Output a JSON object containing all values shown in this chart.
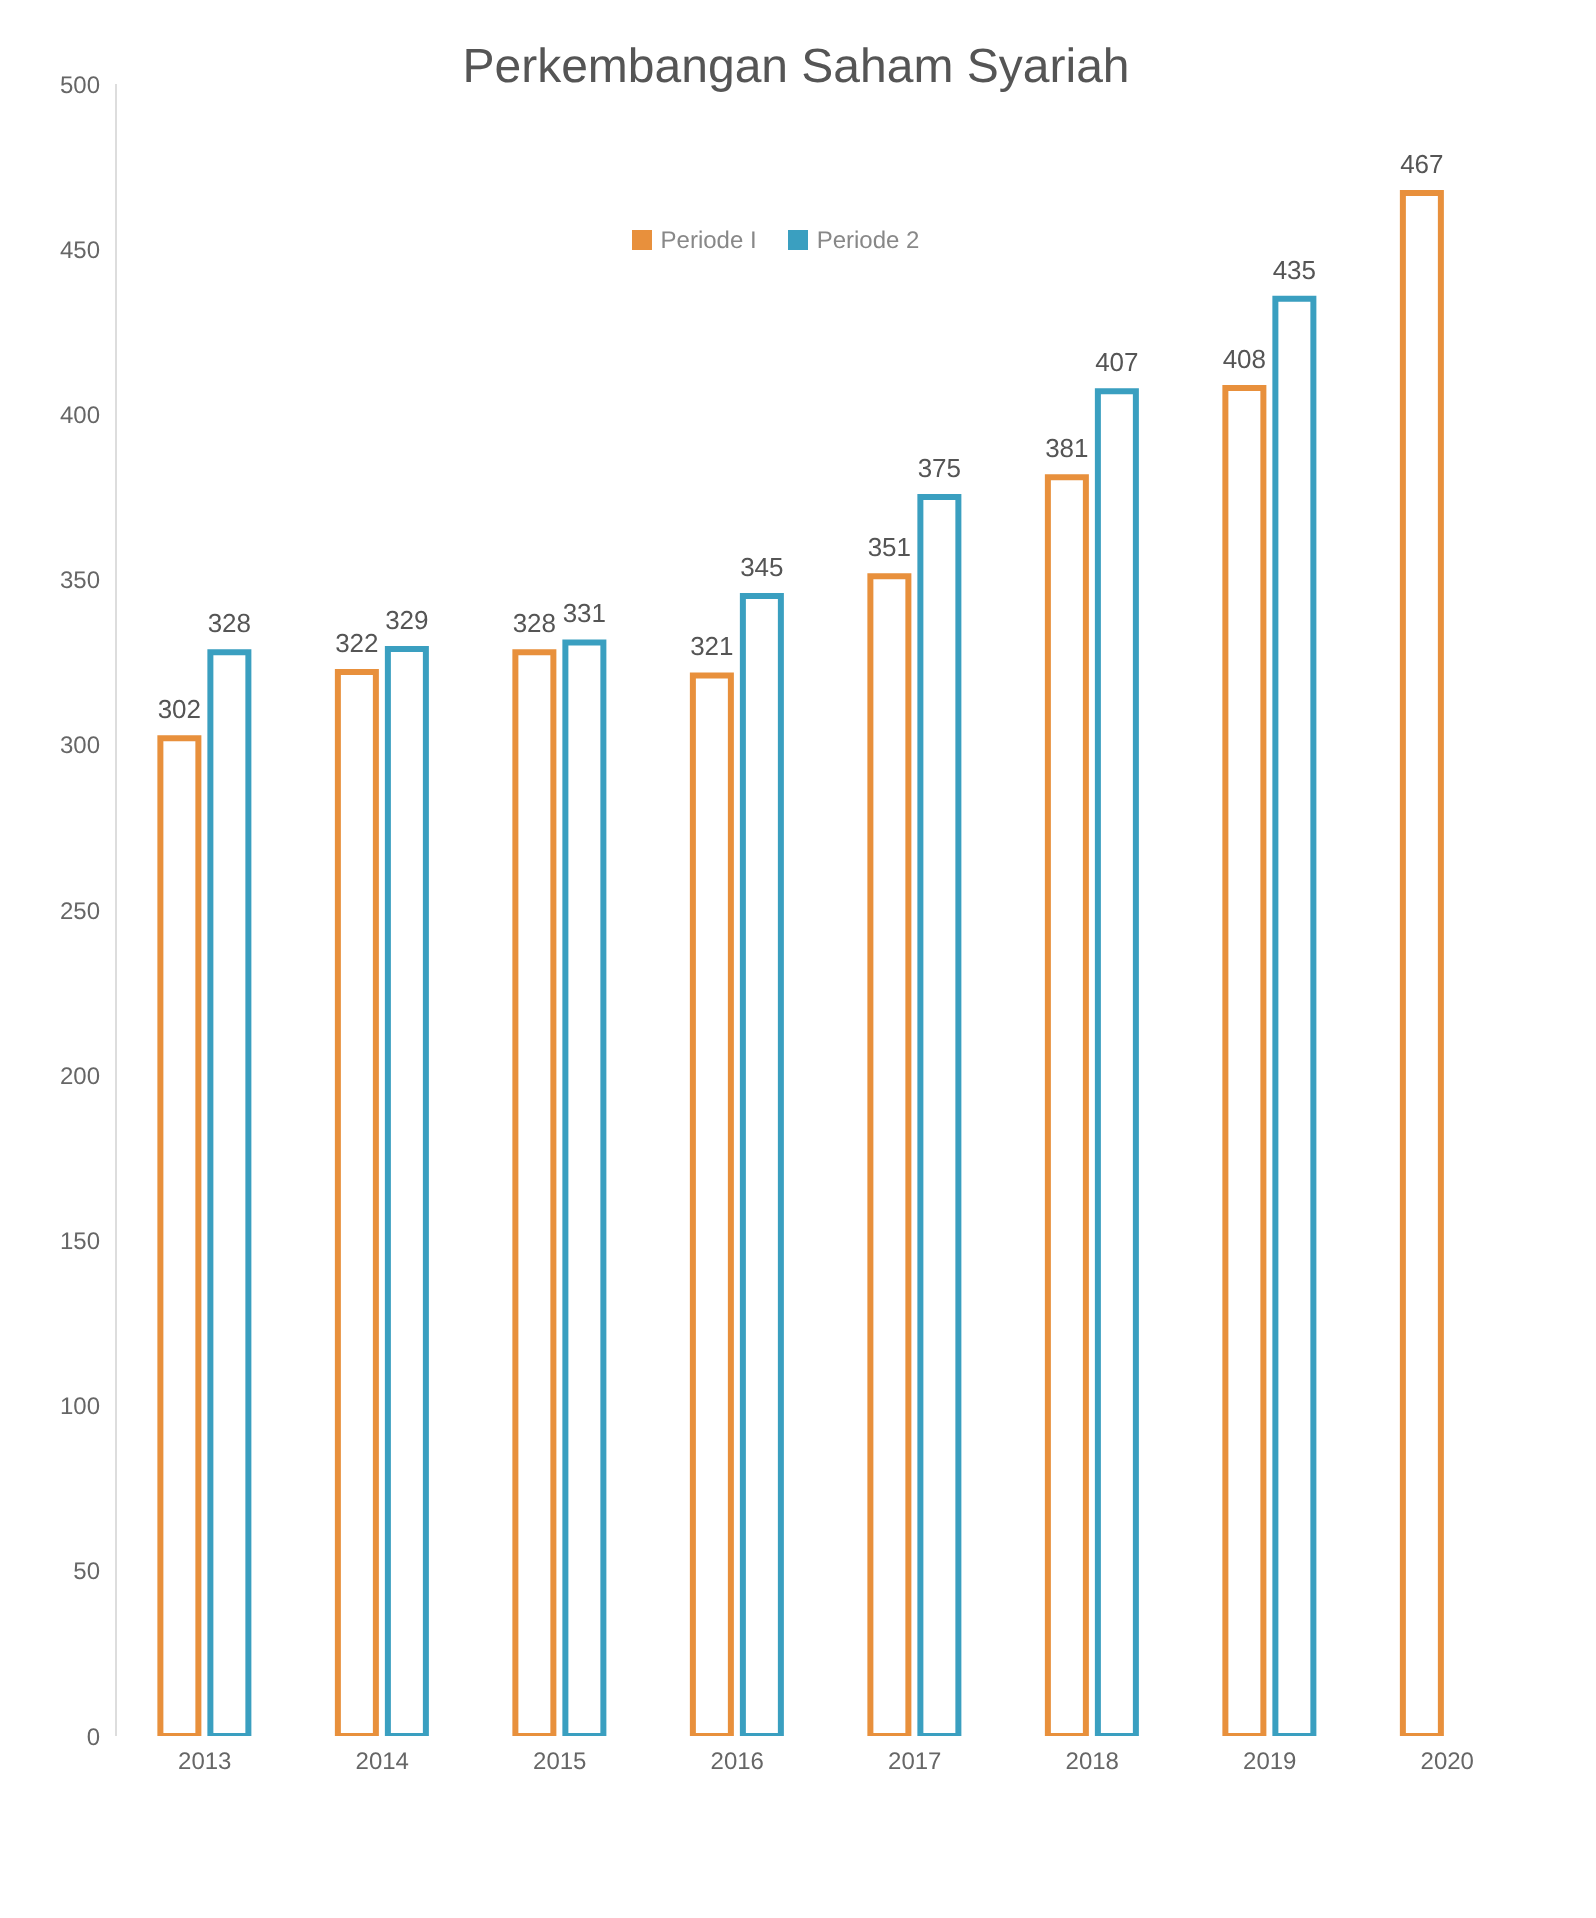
{
  "chart_data": {
    "type": "bar",
    "title": "Perkembangan Saham Syariah",
    "categories": [
      "2013",
      "2014",
      "2015",
      "2016",
      "2017",
      "2018",
      "2019",
      "2020"
    ],
    "series": [
      {
        "name": "Periode I",
        "color": "#e8903c",
        "values": [
          302,
          322,
          328,
          321,
          351,
          381,
          408,
          467
        ]
      },
      {
        "name": "Periode 2",
        "color": "#3a9fc0",
        "values": [
          328,
          329,
          331,
          345,
          375,
          407,
          435,
          null
        ]
      }
    ],
    "ylim": [
      0,
      500
    ],
    "yticks": [
      0,
      50,
      100,
      150,
      200,
      250,
      300,
      350,
      400,
      450,
      500
    ],
    "data_labels": true,
    "legend": "top",
    "grid": false
  }
}
